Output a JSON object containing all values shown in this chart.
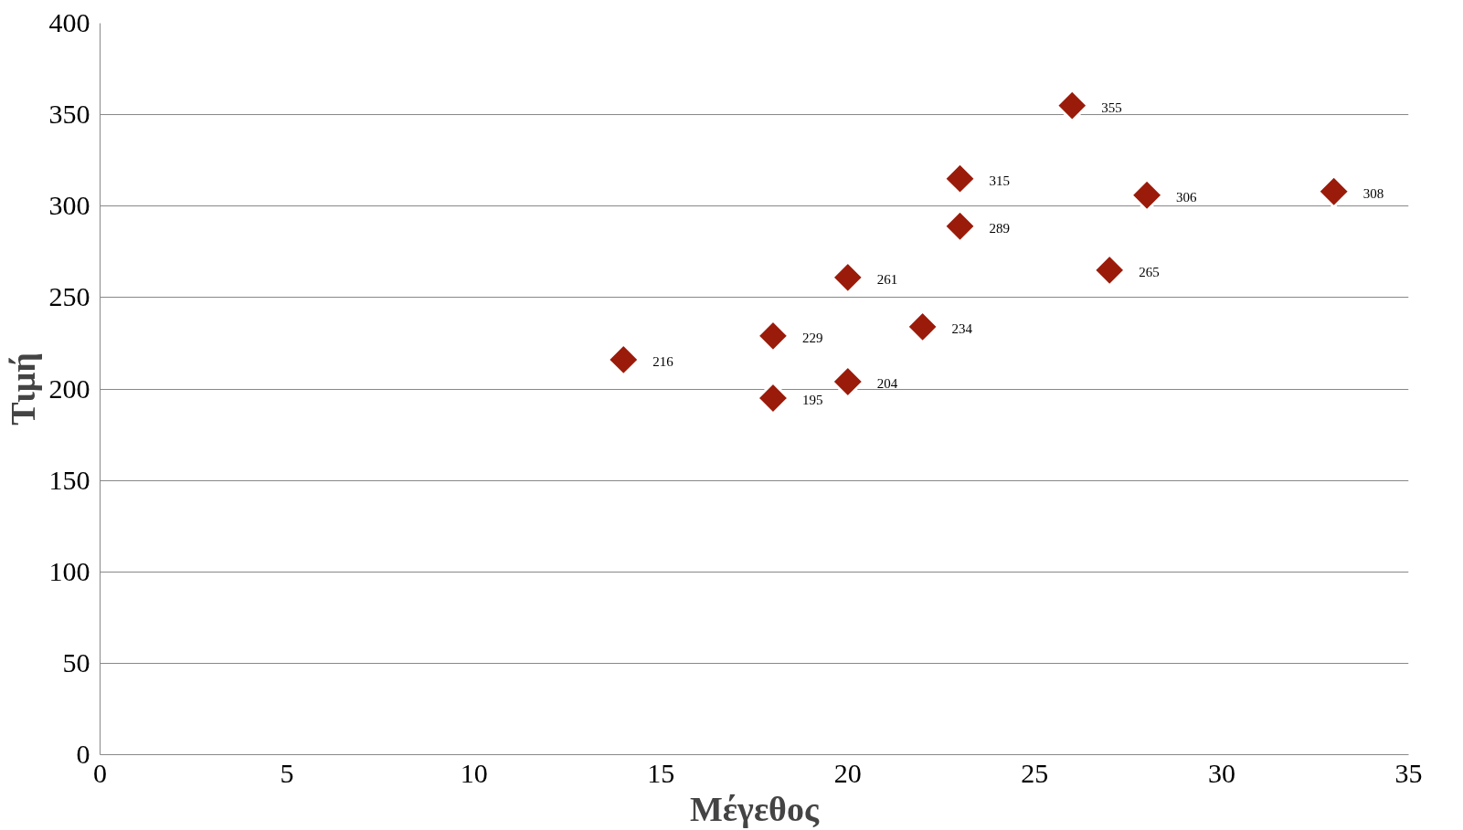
{
  "chart_data": {
    "type": "scatter",
    "xlabel": "Μέγεθος",
    "ylabel": "Τιμή",
    "x": [
      14,
      18,
      18,
      20,
      20,
      22,
      23,
      23,
      26,
      27,
      28,
      33
    ],
    "series": [
      {
        "color": "#9b1b0a",
        "values": [
          216,
          229,
          195,
          261,
          204,
          234,
          315,
          289,
          355,
          265,
          306,
          308
        ]
      }
    ],
    "xlim": [
      0,
      35
    ],
    "xticks": [
      0,
      5,
      10,
      15,
      20,
      25,
      30,
      35
    ],
    "ylim": [
      0,
      400
    ],
    "yticks": [
      0,
      50,
      100,
      150,
      200,
      250,
      300,
      350,
      400
    ],
    "grid": "y",
    "marker": "diamond",
    "data_labels": true
  }
}
